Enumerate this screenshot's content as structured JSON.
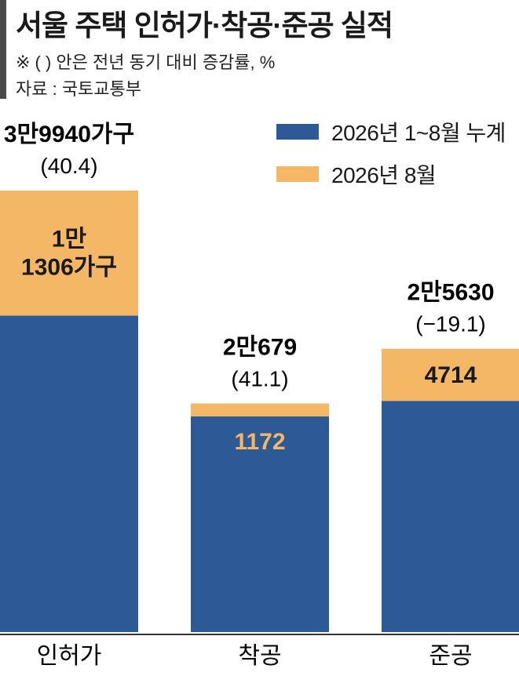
{
  "header": {
    "title": "서울 주택 인허가·착공·준공 실적",
    "note": "※ ( ) 안은 전년 동기 대비 증감률, %",
    "source": "자료 : 국토교통부"
  },
  "chart_data": {
    "type": "bar",
    "stacked": true,
    "categories": [
      "인허가",
      "착공",
      "준공"
    ],
    "series": [
      {
        "name": "2026년 1~8월 누계",
        "values": [
          28634,
          19507,
          20916
        ],
        "color": "#2d5a96"
      },
      {
        "name": "2026년 8월",
        "values": [
          11306,
          1172,
          4714
        ],
        "color": "#f3b766"
      }
    ],
    "totals": [
      39940,
      20679,
      25630
    ],
    "total_labels": [
      "3만9940가구",
      "2만679",
      "2만5630"
    ],
    "change_labels": [
      "(40.4)",
      "(41.1)",
      "(−19.1)"
    ],
    "segment_labels": [
      "1만\n1306가구",
      "1172",
      "4714"
    ],
    "segment_label_colors": [
      "#1a1a1a",
      "#f3b766",
      "#1a1a1a"
    ],
    "ylim": [
      0,
      39940
    ],
    "grid": false,
    "legend_position": "top-right"
  }
}
